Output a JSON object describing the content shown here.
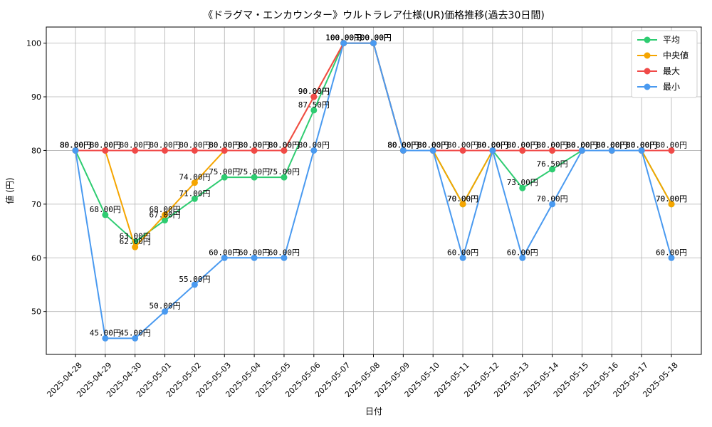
{
  "chart_data": {
    "type": "line",
    "title": "《ドラグマ・エンカウンター》ウルトラレア仕様(UR)価格推移(過去30日間)",
    "xlabel": "日付",
    "ylabel": "値 (円)",
    "ylim": [
      42,
      103
    ],
    "yticks": [
      50,
      60,
      70,
      80,
      90,
      100
    ],
    "grid": true,
    "legend_position": "top-right",
    "label_suffix": "円",
    "categories": [
      "2025-04-28",
      "2025-04-29",
      "2025-04-30",
      "2025-05-01",
      "2025-05-02",
      "2025-05-03",
      "2025-05-04",
      "2025-05-05",
      "2025-05-06",
      "2025-05-07",
      "2025-05-08",
      "2025-05-09",
      "2025-05-10",
      "2025-05-11",
      "2025-05-12",
      "2025-05-13",
      "2025-05-14",
      "2025-05-15",
      "2025-05-16",
      "2025-05-17",
      "2025-05-18"
    ],
    "series": [
      {
        "name": "平均",
        "color": "#2ecc71",
        "values": [
          80,
          68,
          63,
          67,
          71,
          75,
          75,
          75,
          87.5,
          100,
          100,
          80,
          80,
          70,
          80,
          73,
          76.5,
          80,
          80,
          80,
          70
        ]
      },
      {
        "name": "中央値",
        "color": "#f5a500",
        "values": [
          80,
          80,
          62,
          68,
          74,
          80,
          80,
          80,
          90,
          100,
          100,
          80,
          80,
          70,
          80,
          80,
          80,
          80,
          80,
          80,
          70
        ]
      },
      {
        "name": "最大",
        "color": "#f04a48",
        "values": [
          80,
          80,
          80,
          80,
          80,
          80,
          80,
          80,
          90,
          100,
          100,
          80,
          80,
          80,
          80,
          80,
          80,
          80,
          80,
          80,
          80
        ]
      },
      {
        "name": "最小",
        "color": "#4a9af0",
        "values": [
          80,
          45,
          45,
          50,
          55,
          60,
          60,
          60,
          80,
          100,
          100,
          80,
          80,
          60,
          80,
          60,
          70,
          80,
          80,
          80,
          60
        ]
      }
    ]
  }
}
